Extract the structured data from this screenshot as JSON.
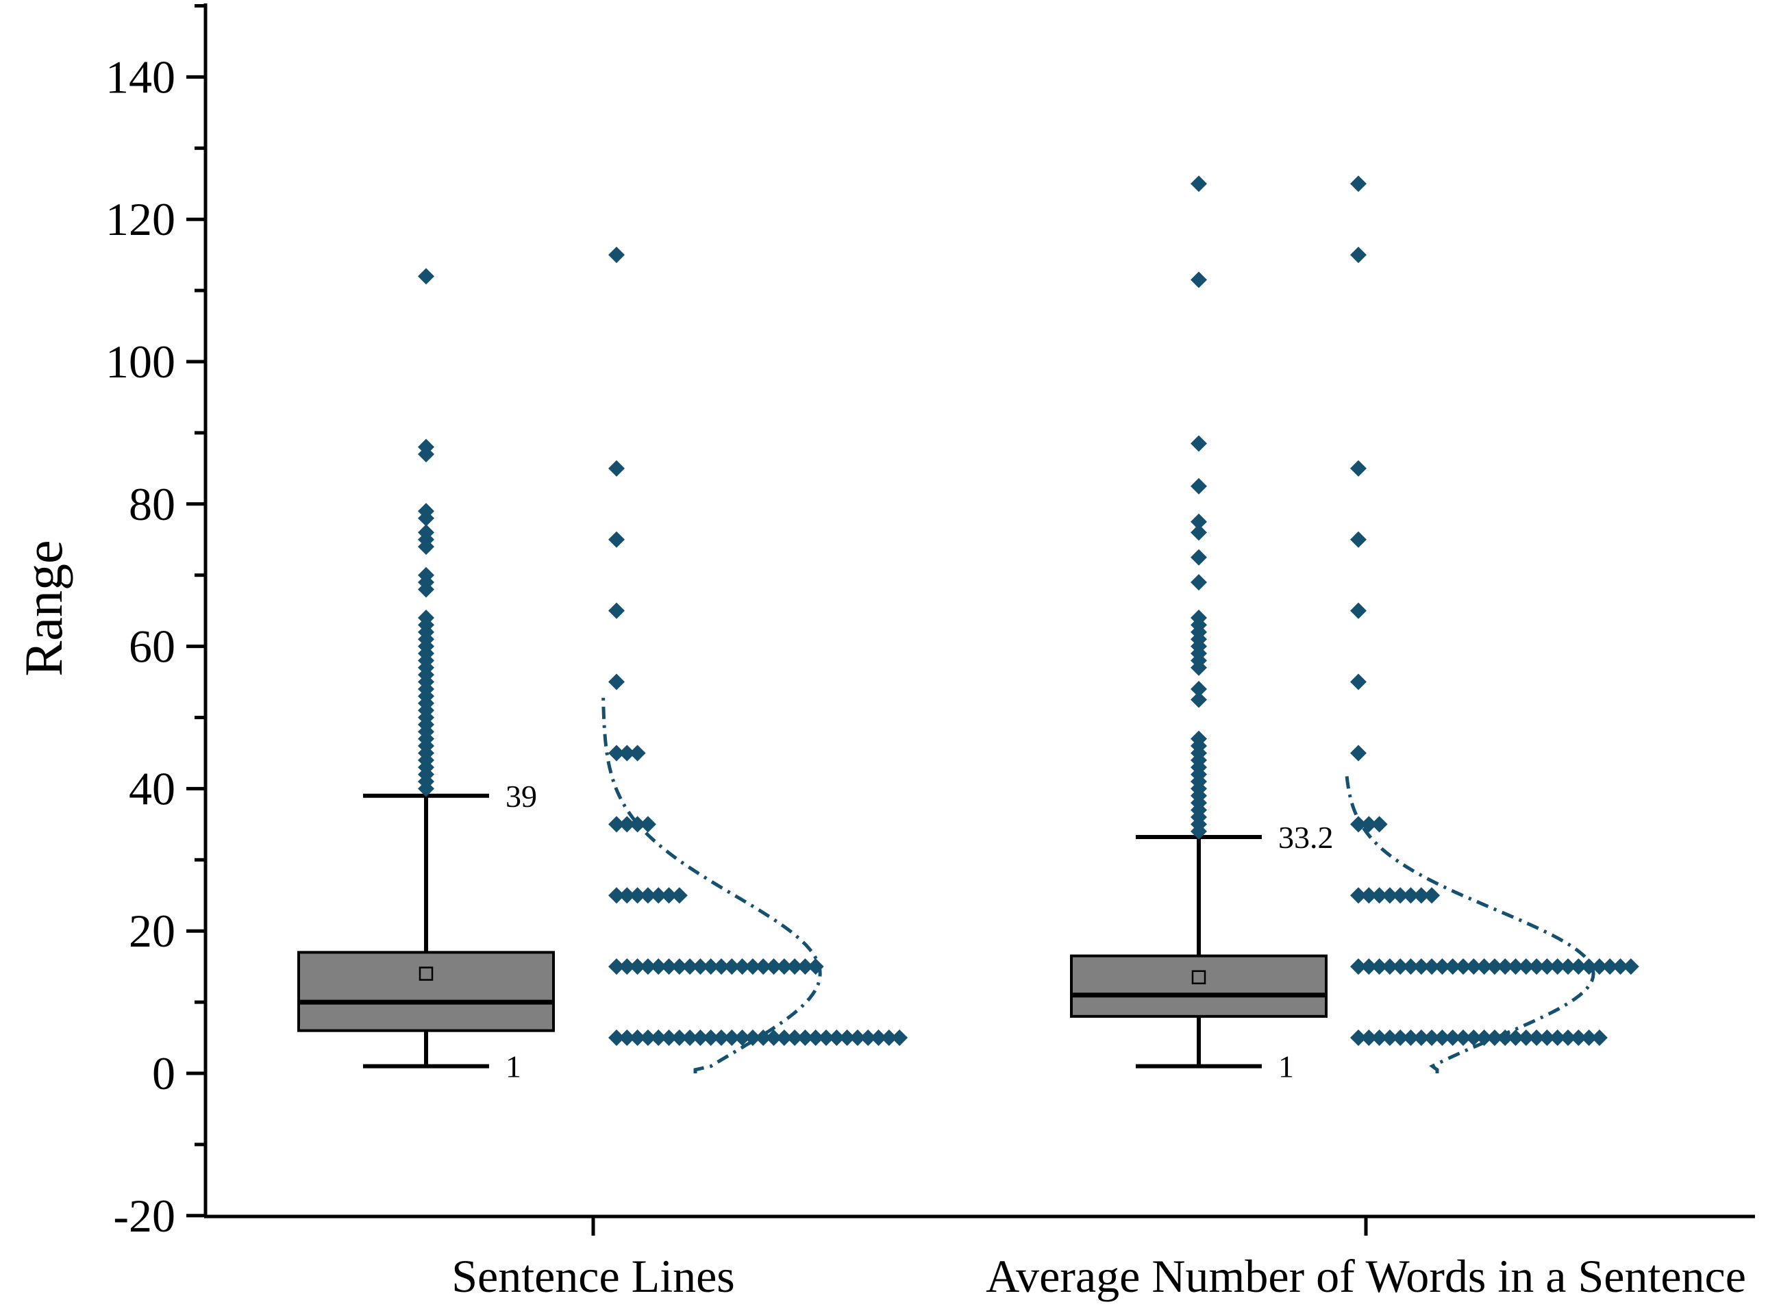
{
  "chart_data": {
    "type": "box",
    "ylabel": "Range",
    "ylim": [
      -20,
      150
    ],
    "yticks": [
      -20,
      0,
      20,
      40,
      60,
      80,
      100,
      120,
      140
    ],
    "categories": [
      "Sentence Lines",
      "Average Number of Words in a Sentence"
    ],
    "colors": {
      "box_fill": "#808080",
      "points": "#15506e",
      "curve": "#15506e",
      "axis": "#000000"
    },
    "boxes": [
      {
        "name": "Sentence Lines",
        "whisker_low": 1,
        "q1": 6,
        "median": 10,
        "q3": 17,
        "whisker_high": 39,
        "mean": 14,
        "whisker_low_label": "1",
        "whisker_high_label": "39",
        "outliers": [
          40,
          41,
          42,
          43,
          44,
          45,
          46,
          47,
          48,
          49,
          50,
          51,
          52,
          53,
          54,
          55,
          56,
          57,
          58,
          59,
          60,
          61,
          62,
          63,
          64,
          68,
          69,
          70,
          74,
          75,
          76,
          78,
          79,
          87,
          88,
          112
        ],
        "histogram_points": [
          {
            "y": 5,
            "count": 28
          },
          {
            "y": 15,
            "count": 20
          },
          {
            "y": 25,
            "count": 7
          },
          {
            "y": 35,
            "count": 4
          },
          {
            "y": 45,
            "count": 3
          },
          {
            "y": 55,
            "count": 1
          },
          {
            "y": 65,
            "count": 1
          },
          {
            "y": 75,
            "count": 1
          },
          {
            "y": 85,
            "count": 1
          },
          {
            "y": 115,
            "count": 1
          }
        ],
        "curve": {
          "mean": 14,
          "sd": 11,
          "y_from": 0,
          "y_to": 53,
          "peak_count": 24
        }
      },
      {
        "name": "Average Number of Words in a Sentence",
        "whisker_low": 1,
        "q1": 8,
        "median": 11,
        "q3": 16.5,
        "whisker_high": 33.2,
        "mean": 13.5,
        "whisker_low_label": "1",
        "whisker_high_label": "33.2",
        "outliers": [
          34,
          35,
          36,
          37,
          38,
          39,
          40,
          41,
          42,
          43,
          44,
          45,
          46,
          47,
          52.5,
          54,
          57,
          58,
          59,
          60,
          61,
          62,
          63,
          64,
          69,
          72.5,
          76,
          77.5,
          82.5,
          88.5,
          111.5,
          125
        ],
        "histogram_points": [
          {
            "y": 5,
            "count": 24
          },
          {
            "y": 15,
            "count": 27
          },
          {
            "y": 25,
            "count": 8
          },
          {
            "y": 35,
            "count": 3
          },
          {
            "y": 45,
            "count": 1
          },
          {
            "y": 55,
            "count": 1
          },
          {
            "y": 65,
            "count": 1
          },
          {
            "y": 75,
            "count": 1
          },
          {
            "y": 85,
            "count": 1
          },
          {
            "y": 115,
            "count": 1
          },
          {
            "y": 125,
            "count": 1
          }
        ],
        "curve": {
          "mean": 14,
          "sd": 9,
          "y_from": 0,
          "y_to": 42,
          "peak_count": 27
        }
      }
    ]
  }
}
